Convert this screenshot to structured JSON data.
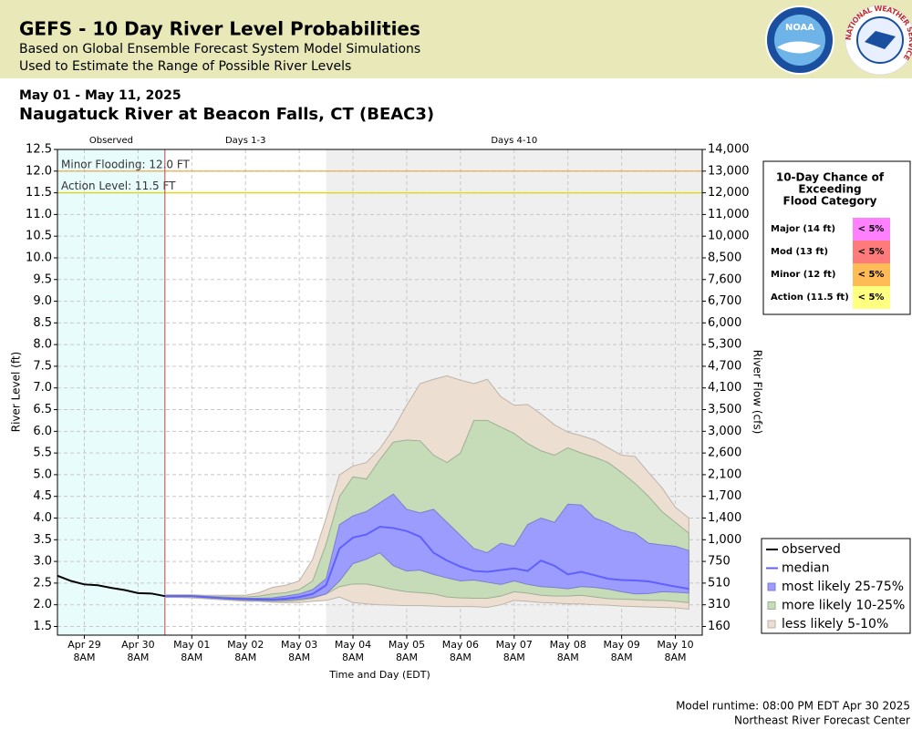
{
  "header": {
    "title": "GEFS - 10 Day River Level Probabilities",
    "line1": "Based on Global Ensemble Forecast System Model Simulations",
    "line2": "Used to Estimate the Range of Possible River Levels",
    "noaa_logo": "NOAA",
    "nws_logo": "NATIONAL WEATHER SERVICE"
  },
  "date_range": "May 01 - May 11, 2025",
  "station": "Naugatuck River at Beacon Falls, CT (BEAC3)",
  "chart_data": {
    "type": "area",
    "x_label": "Time and Day (EDT)",
    "y_label": "River Level (ft)",
    "y2_label": "River Flow (cfs)",
    "x": [
      "Apr 28 8PM",
      "Apr 29 2AM",
      "Apr 29 8AM",
      "Apr 29 2PM",
      "Apr 29 8PM",
      "Apr 30 2AM",
      "Apr 30 8AM",
      "Apr 30 2PM",
      "Apr 30 8PM",
      "May 01 2AM",
      "May 01 8AM",
      "May 01 2PM",
      "May 01 8PM",
      "May 02 2AM",
      "May 02 8AM",
      "May 02 2PM",
      "May 02 8PM",
      "May 03 2AM",
      "May 03 8AM",
      "May 03 2PM",
      "May 03 8PM",
      "May 04 2AM",
      "May 04 8AM",
      "May 04 2PM",
      "May 04 8PM",
      "May 05 2AM",
      "May 05 8AM",
      "May 05 2PM",
      "May 05 8PM",
      "May 06 2AM",
      "May 06 8AM",
      "May 06 2PM",
      "May 06 8PM",
      "May 07 2AM",
      "May 07 8AM",
      "May 07 2PM",
      "May 07 8PM",
      "May 08 2AM",
      "May 08 8AM",
      "May 08 2PM",
      "May 08 8PM",
      "May 09 2AM",
      "May 09 8AM",
      "May 09 2PM",
      "May 09 8PM",
      "May 10 2AM",
      "May 10 8AM",
      "May 10 2PM",
      "May 10 8PM"
    ],
    "xticks": [
      "Apr 29 8AM",
      "Apr 30 8AM",
      "May 01 8AM",
      "May 02 8AM",
      "May 03 8AM",
      "May 04 8AM",
      "May 05 8AM",
      "May 06 8AM",
      "May 07 8AM",
      "May 08 8AM",
      "May 09 8AM",
      "May 10 8AM"
    ],
    "ylim": [
      1.3,
      12.5
    ],
    "yticks": [
      1.5,
      {
        "value": 2,
        "label": "2.0"
      },
      2.5,
      {
        "value": 3,
        "label": "3.0"
      },
      3.5,
      {
        "value": 4,
        "label": "4.0"
      },
      4.5,
      {
        "value": 5,
        "label": "5.0"
      },
      5.5,
      {
        "value": 6,
        "label": "6.0"
      },
      6.5,
      {
        "value": 7,
        "label": "7.0"
      },
      7.5,
      {
        "value": 8,
        "label": "8.0"
      },
      8.5,
      {
        "value": 9,
        "label": "9.0"
      },
      9.5,
      {
        "value": 10,
        "label": "10.0"
      },
      10.5,
      {
        "value": 11,
        "label": "11.0"
      },
      11.5,
      {
        "value": 12,
        "label": "12.0"
      },
      12.5
    ],
    "y2ticks": [
      160,
      310,
      510,
      750,
      {
        "value": 1000,
        "label": "1,000"
      },
      {
        "value": 1400,
        "label": "1,400"
      },
      {
        "value": 1700,
        "label": "1,700"
      },
      {
        "value": 2100,
        "label": "2,100"
      },
      {
        "value": 2600,
        "label": "2,600"
      },
      {
        "value": 3000,
        "label": "3,000"
      },
      {
        "value": 3500,
        "label": "3,500"
      },
      {
        "value": 4100,
        "label": "4,100"
      },
      {
        "value": 4700,
        "label": "4,700"
      },
      {
        "value": 5300,
        "label": "5,300"
      },
      {
        "value": 6000,
        "label": "6,000"
      },
      {
        "value": 6700,
        "label": "6,700"
      },
      {
        "value": 7600,
        "label": "7,600"
      },
      {
        "value": 8500,
        "label": "8,500"
      },
      {
        "value": 10000,
        "label": "10,000"
      },
      {
        "value": 11000,
        "label": "11,000"
      },
      {
        "value": 12000,
        "label": "12,000"
      },
      {
        "value": 13000,
        "label": "13,000"
      },
      {
        "value": 14000,
        "label": "14,000"
      }
    ],
    "grid": true,
    "sections": [
      {
        "label": "Observed",
        "start": "Apr 28 8PM",
        "end": "Apr 30 8PM",
        "color": "#e8fcfc"
      },
      {
        "label": "Days 1-3",
        "start": "Apr 30 8PM",
        "end": "May 03 8PM",
        "color": "#ffffff"
      },
      {
        "label": "Days 4-10",
        "start": "May 03 8PM",
        "end": "May 10 8PM",
        "color": "#efefef"
      }
    ],
    "thresholds": [
      {
        "label": "Minor Flooding: 12.0 FT",
        "value": 12,
        "color": "#f0a040"
      },
      {
        "label": "Action Level: 11.5 FT",
        "value": 11.5,
        "color": "#e0d800"
      }
    ],
    "series": [
      {
        "name": "observed",
        "color": "#000000",
        "values": [
          2.67,
          2.55,
          2.47,
          2.45,
          2.39,
          2.34,
          2.27,
          2.26,
          2.2,
          null,
          null,
          null,
          null,
          null,
          null,
          null,
          null,
          null,
          null,
          null,
          null,
          null,
          null,
          null,
          null,
          null,
          null,
          null,
          null,
          null,
          null,
          null,
          null,
          null,
          null,
          null,
          null,
          null,
          null,
          null,
          null,
          null,
          null,
          null,
          null,
          null,
          null,
          null,
          null
        ]
      },
      {
        "name": "median",
        "color": "#6060ff",
        "values": [
          null,
          null,
          null,
          null,
          null,
          null,
          null,
          null,
          2.2,
          2.2,
          2.2,
          2.18,
          2.16,
          2.14,
          2.13,
          2.12,
          2.12,
          2.14,
          2.18,
          2.25,
          2.45,
          3.3,
          3.55,
          3.62,
          3.8,
          3.77,
          3.7,
          3.57,
          3.2,
          3.02,
          2.88,
          2.78,
          2.76,
          2.8,
          2.84,
          2.78,
          3.02,
          2.9,
          2.7,
          2.76,
          2.68,
          2.6,
          2.57,
          2.56,
          2.54,
          2.48,
          2.42,
          2.37,
          null
        ]
      },
      {
        "name": "most likely 25-75%",
        "color": "#9c9cff",
        "low": [
          null,
          null,
          null,
          null,
          null,
          null,
          null,
          null,
          2.19,
          2.19,
          2.19,
          2.17,
          2.15,
          2.13,
          2.12,
          2.11,
          2.1,
          2.11,
          2.13,
          2.17,
          2.25,
          2.55,
          2.95,
          3.05,
          3.2,
          2.9,
          2.78,
          2.8,
          2.7,
          2.62,
          2.55,
          2.57,
          2.52,
          2.47,
          2.55,
          2.47,
          2.42,
          2.4,
          2.37,
          2.42,
          2.4,
          2.36,
          2.3,
          2.25,
          2.26,
          2.3,
          2.29,
          2.27,
          null
        ],
        "high": [
          null,
          null,
          null,
          null,
          null,
          null,
          null,
          null,
          2.21,
          2.21,
          2.21,
          2.19,
          2.17,
          2.16,
          2.15,
          2.15,
          2.16,
          2.2,
          2.25,
          2.35,
          2.6,
          3.85,
          4.05,
          4.15,
          4.35,
          4.55,
          4.2,
          4.12,
          4.2,
          3.9,
          3.6,
          3.3,
          3.2,
          3.42,
          3.35,
          3.85,
          4.0,
          3.9,
          4.32,
          4.3,
          4.0,
          3.88,
          3.72,
          3.65,
          3.42,
          3.38,
          3.35,
          3.25,
          null
        ]
      },
      {
        "name": "more likely 10-25%",
        "color": "#c6dbb8",
        "low": [
          null,
          null,
          null,
          null,
          null,
          null,
          null,
          null,
          2.18,
          2.18,
          2.18,
          2.16,
          2.14,
          2.12,
          2.1,
          2.09,
          2.08,
          2.08,
          2.1,
          2.15,
          2.25,
          2.42,
          2.48,
          2.48,
          2.42,
          2.35,
          2.3,
          2.28,
          2.25,
          2.18,
          2.16,
          2.15,
          2.15,
          2.2,
          2.3,
          2.27,
          2.22,
          2.2,
          2.2,
          2.22,
          2.18,
          2.14,
          2.13,
          2.12,
          2.1,
          2.1,
          2.08,
          2.05,
          null
        ],
        "high": [
          null,
          null,
          null,
          null,
          null,
          null,
          null,
          null,
          2.22,
          2.22,
          2.22,
          2.2,
          2.19,
          2.18,
          2.18,
          2.2,
          2.25,
          2.28,
          2.35,
          2.55,
          3.4,
          4.5,
          4.95,
          4.9,
          5.35,
          5.75,
          5.8,
          5.78,
          5.45,
          5.28,
          5.5,
          6.25,
          6.25,
          6.1,
          5.95,
          5.72,
          5.55,
          5.45,
          5.62,
          5.5,
          5.4,
          5.28,
          5.05,
          4.8,
          4.5,
          4.15,
          3.9,
          3.65,
          null
        ]
      },
      {
        "name": "less likely 5-10%",
        "color": "#ecdfd2",
        "low": [
          null,
          null,
          null,
          null,
          null,
          null,
          null,
          null,
          2.17,
          2.17,
          2.16,
          2.14,
          2.12,
          2.1,
          2.08,
          2.08,
          2.06,
          2.05,
          2.05,
          2.08,
          2.1,
          2.18,
          2.05,
          2.02,
          2.0,
          1.99,
          1.98,
          1.98,
          1.97,
          1.96,
          1.96,
          1.96,
          1.94,
          2.0,
          2.1,
          2.08,
          2.05,
          2.04,
          2.02,
          2.02,
          2.0,
          1.99,
          1.97,
          1.96,
          1.95,
          1.94,
          1.93,
          1.9,
          null
        ],
        "high": [
          null,
          null,
          null,
          null,
          null,
          null,
          null,
          null,
          2.23,
          2.23,
          2.23,
          2.22,
          2.22,
          2.22,
          2.22,
          2.28,
          2.4,
          2.45,
          2.55,
          3.05,
          4.0,
          5.0,
          5.2,
          5.28,
          5.6,
          6.05,
          6.6,
          7.1,
          7.2,
          7.28,
          7.18,
          7.1,
          7.2,
          6.8,
          6.6,
          6.62,
          6.4,
          6.15,
          5.98,
          5.9,
          5.8,
          5.62,
          5.45,
          5.42,
          5.05,
          4.7,
          4.25,
          4.0,
          null
        ]
      }
    ]
  },
  "flood_table": {
    "title": [
      "10-Day Chance of",
      "Exceeding",
      "Flood Category"
    ],
    "rows": [
      {
        "label": "Major (14 ft)",
        "chance": "< 5%",
        "color": "#ff80ff"
      },
      {
        "label": "Mod (13 ft)",
        "chance": "< 5%",
        "color": "#ff7b7b"
      },
      {
        "label": "Minor (12 ft)",
        "chance": "< 5%",
        "color": "#ffbb55"
      },
      {
        "label": "Action (11.5 ft)",
        "chance": "< 5%",
        "color": "#ffff80"
      }
    ]
  },
  "footer": {
    "runtime": "Model runtime: 08:00 PM EDT Apr 30 2025",
    "center": "Northeast River Forecast Center"
  }
}
